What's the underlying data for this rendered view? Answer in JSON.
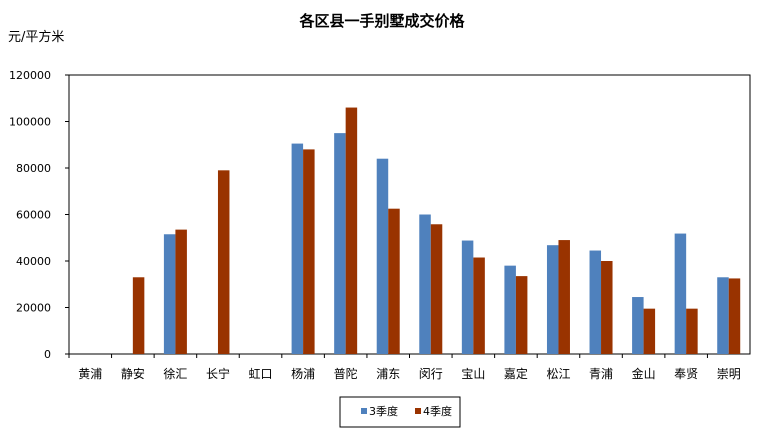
{
  "chart_data": {
    "type": "bar",
    "title": "各区县一手别墅成交价格",
    "ylabel": "元/平方米",
    "xlabel": "",
    "ylim": [
      0,
      120000
    ],
    "yticks": [
      0,
      20000,
      40000,
      60000,
      80000,
      100000,
      120000
    ],
    "grid": false,
    "legend": "bottom",
    "categories": [
      "黄浦",
      "静安",
      "徐汇",
      "长宁",
      "虹口",
      "杨浦",
      "普陀",
      "浦东",
      "闵行",
      "宝山",
      "嘉定",
      "松江",
      "青浦",
      "金山",
      "奉贤",
      "崇明"
    ],
    "series": [
      {
        "name": "3季度",
        "color": "#4F81BD",
        "values": [
          null,
          null,
          51500,
          null,
          null,
          90500,
          95000,
          84000,
          60000,
          48800,
          38000,
          46800,
          44500,
          24500,
          51800,
          33000
        ]
      },
      {
        "name": "4季度",
        "color": "#993300",
        "values": [
          null,
          33000,
          53500,
          79000,
          null,
          88000,
          106000,
          62500,
          55800,
          41500,
          33500,
          49000,
          40000,
          19500,
          19500,
          32500
        ]
      }
    ]
  }
}
